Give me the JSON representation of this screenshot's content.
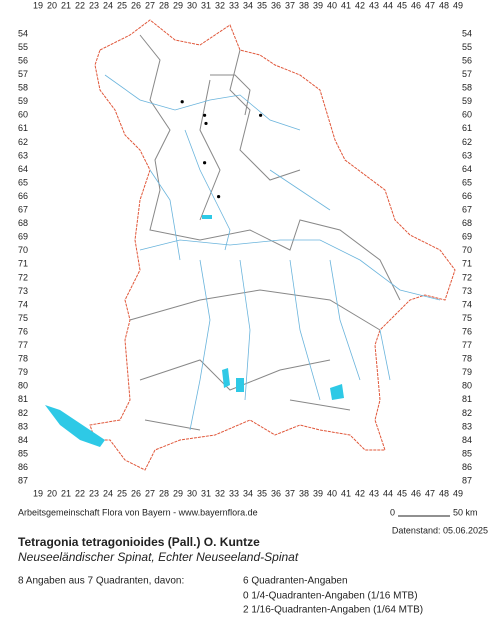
{
  "map": {
    "columns": [
      19,
      20,
      21,
      22,
      23,
      24,
      25,
      26,
      27,
      28,
      29,
      30,
      31,
      32,
      33,
      34,
      35,
      36,
      37,
      38,
      39,
      40,
      41,
      42,
      43,
      44,
      45,
      46,
      47,
      48,
      49
    ],
    "rows": [
      54,
      55,
      56,
      57,
      58,
      59,
      60,
      61,
      62,
      63,
      64,
      65,
      66,
      67,
      68,
      69,
      70,
      71,
      72,
      73,
      74,
      75,
      76,
      77,
      78,
      79,
      80,
      81,
      82,
      83,
      84,
      85,
      86,
      87
    ],
    "records": [
      {
        "col": 29.3,
        "row": 59
      },
      {
        "col": 30.9,
        "row": 60
      },
      {
        "col": 31.0,
        "row": 60.6
      },
      {
        "col": 34.9,
        "row": 60
      },
      {
        "col": 30.9,
        "row": 63.5
      },
      {
        "col": 31.9,
        "row": 66
      }
    ],
    "credit": "Arbeitsgemeinschaft Flora von Bayern - www.bayernflora.de",
    "scale_start": "0",
    "scale_end": "50 km",
    "status": "Datenstand: 05.06.2025"
  },
  "species": {
    "title": "Tetragonia tetragonioides (Pall.) O. Kuntze",
    "subtitle": "Neuseeländischer Spinat, Echter Neuseeland-Spinat"
  },
  "summary": {
    "total": "8 Angaben aus 7 Quadranten, davon:",
    "breakdown": [
      "6 Quadranten-Angaben",
      "0 1/4-Quadranten-Angaben (1/16 MTB)",
      "2 1/16-Quadranten-Angaben (1/64 MTB)"
    ]
  }
}
